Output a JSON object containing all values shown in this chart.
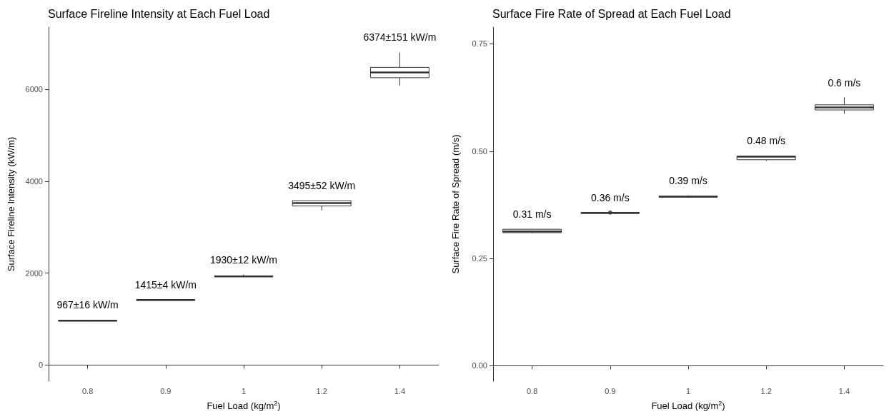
{
  "chart_data": [
    {
      "type": "box",
      "title": "Surface Fireline Intensity at Each Fuel Load",
      "xlabel": "Fuel Load (kg/m$^{2}$)",
      "ylabel": "Surface Fireline Intensity (kW/m)",
      "categories": [
        "0.8",
        "0.9",
        "1",
        "1.2",
        "1.4"
      ],
      "color": "#333333",
      "boxes": [
        {
          "low": 950,
          "q1": 960,
          "median": 967,
          "q3": 975,
          "high": 985
        },
        {
          "low": 1405,
          "q1": 1410,
          "median": 1415,
          "q3": 1420,
          "high": 1425
        },
        {
          "low": 1920,
          "q1": 1925,
          "median": 1930,
          "q3": 1940,
          "high": 1970
        },
        {
          "low": 3366,
          "q1": 3460,
          "median": 3525,
          "q3": 3575,
          "high": 3580
        },
        {
          "low": 6075,
          "q1": 6250,
          "median": 6365,
          "q3": 6475,
          "high": 6800
        }
      ],
      "ylim": [
        -350,
        7350
      ],
      "yticks": [
        0,
        2000,
        4000,
        6000
      ],
      "annotations": [
        "967±16 kW/m",
        "1415±4 kW/m",
        "1930±12 kW/m",
        "3495±52 kW/m",
        "6374±151 kW/m"
      ]
    },
    {
      "type": "box",
      "title": "Surface Fire Rate of Spread at Each Fuel Load",
      "xlabel": "Fuel Load (kg/m$^{2}$)",
      "ylabel": "Surface Fire Rate of Spread (m/s)",
      "categories": [
        "0.8",
        "0.9",
        "1",
        "1.2",
        "1.4"
      ],
      "color": "#333333",
      "boxes": [
        {
          "low": 0.309,
          "q1": 0.31,
          "median": 0.313,
          "q3": 0.318,
          "high": 0.319
        },
        {
          "low": 0.355,
          "q1": 0.355,
          "median": 0.356,
          "q3": 0.356,
          "high": 0.356,
          "outliers": [
            0.357
          ]
        },
        {
          "low": 0.393,
          "q1": 0.393,
          "median": 0.394,
          "q3": 0.395,
          "high": 0.397
        },
        {
          "low": 0.477,
          "q1": 0.48,
          "median": 0.487,
          "q3": 0.488,
          "high": 0.489
        },
        {
          "low": 0.587,
          "q1": 0.596,
          "median": 0.602,
          "q3": 0.608,
          "high": 0.625
        }
      ],
      "ylim": [
        -0.036,
        0.789
      ],
      "yticks": [
        {
          "value": 0,
          "label": "0.00"
        },
        {
          "value": 0.25,
          "label": "0.25"
        },
        {
          "value": 0.5,
          "label": "0.50"
        },
        {
          "value": 0.75,
          "label": "0.75"
        }
      ],
      "annotations": [
        "0.31 m/s",
        "0.36 m/s",
        "0.39 m/s",
        "0.48 m/s",
        "0.6 m/s"
      ]
    }
  ]
}
